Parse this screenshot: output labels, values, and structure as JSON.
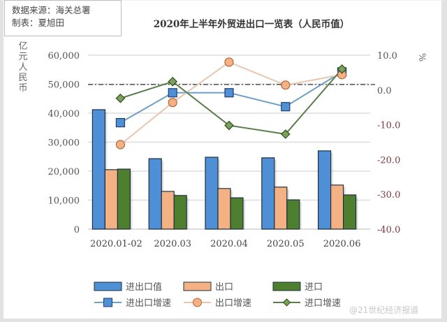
{
  "source_box": {
    "line1": "数据来源：海关总署",
    "line2": "制表：夏旭田"
  },
  "watermark": "@21世纪经济报道",
  "chart_data": {
    "type": "bar",
    "combo": "bar + line (dual axis)",
    "title": "2020年上半年外贸进出口一览表（人民币值）",
    "xlabel": "",
    "ylabel": "亿元人民币",
    "y2label": "%",
    "categories": [
      "2020.01-02",
      "2020.03",
      "2020.04",
      "2020.05",
      "2020.06"
    ],
    "ylim": [
      0,
      60000
    ],
    "y_ticks": [
      "60,000",
      "50,000",
      "40,000",
      "30,000",
      "20,000",
      "10,000",
      "0"
    ],
    "y2lim": [
      -40,
      10
    ],
    "y2_ticks": [
      "10.0",
      "0.0",
      "-10.0",
      "-20.0",
      "-30.0",
      "-40.0"
    ],
    "grid": true,
    "legend_position": "bottom",
    "reference_line": {
      "axis": "y2",
      "value": 0,
      "style": "dash-dot"
    },
    "series": [
      {
        "name": "进出口值",
        "type": "bar",
        "axis": "y",
        "color": "#4f8fd6",
        "values": [
          41200,
          24300,
          24800,
          24600,
          27000
        ]
      },
      {
        "name": "出口",
        "type": "bar",
        "axis": "y",
        "color": "#f4b183",
        "values": [
          20500,
          13000,
          14000,
          14500,
          15200
        ]
      },
      {
        "name": "进口",
        "type": "bar",
        "axis": "y",
        "color": "#4e7f2f",
        "values": [
          20700,
          11600,
          10800,
          10100,
          11800
        ]
      },
      {
        "name": "进出口增速",
        "type": "line",
        "axis": "y2",
        "marker": "square",
        "color": "#6e9fc4",
        "marker_color": "#4f8fd6",
        "values": [
          -9.4,
          -0.8,
          -0.8,
          -4.8,
          5.2
        ]
      },
      {
        "name": "出口增速",
        "type": "line",
        "axis": "y2",
        "marker": "circle",
        "color": "#e8c6b0",
        "marker_color": "#f4b183",
        "values": [
          -15.7,
          -3.6,
          8.0,
          1.4,
          4.4
        ]
      },
      {
        "name": "进口增速",
        "type": "line",
        "axis": "y2",
        "marker": "diamond",
        "color": "#5a7d4a",
        "marker_color": "#7aa05a",
        "values": [
          -2.4,
          2.4,
          -10.2,
          -12.7,
          6.0
        ]
      }
    ]
  }
}
